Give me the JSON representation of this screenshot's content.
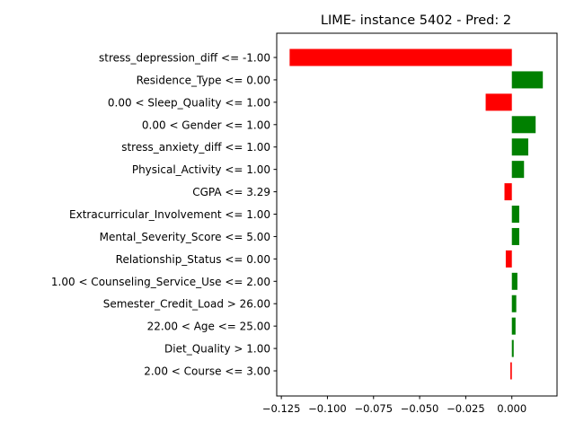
{
  "chart_data": {
    "type": "bar",
    "orientation": "horizontal",
    "title": "LIME- instance 5402 - Pred: 2",
    "xlabel": "",
    "ylabel": "",
    "xlim": [
      -0.1275,
      0.0245
    ],
    "xticks": [
      -0.125,
      -0.1,
      -0.075,
      -0.05,
      -0.025,
      0.0
    ],
    "xtick_labels": [
      "−0.125",
      "−0.100",
      "−0.075",
      "−0.050",
      "−0.025",
      "0.000"
    ],
    "grid": false,
    "positive_color": "#008000",
    "negative_color": "#ff0000",
    "categories": [
      "stress_depression_diff <= -1.00",
      "Residence_Type <= 0.00",
      "0.00 < Sleep_Quality <= 1.00",
      "0.00 < Gender <= 1.00",
      "stress_anxiety_diff <= 1.00",
      "Physical_Activity <= 1.00",
      "CGPA <= 3.29",
      "Extracurricular_Involvement <= 1.00",
      "Mental_Severity_Score <= 5.00",
      "Relationship_Status <= 0.00",
      "1.00 < Counseling_Service_Use <= 2.00",
      "Semester_Credit_Load > 26.00",
      "22.00 < Age <= 25.00",
      "Diet_Quality > 1.00",
      "2.00 < Course <= 3.00"
    ],
    "values": [
      -0.1205,
      0.0168,
      -0.0142,
      0.0129,
      0.0089,
      0.0066,
      -0.004,
      0.004,
      0.004,
      -0.0033,
      0.003,
      0.0024,
      0.002,
      0.001,
      -0.0008
    ]
  }
}
